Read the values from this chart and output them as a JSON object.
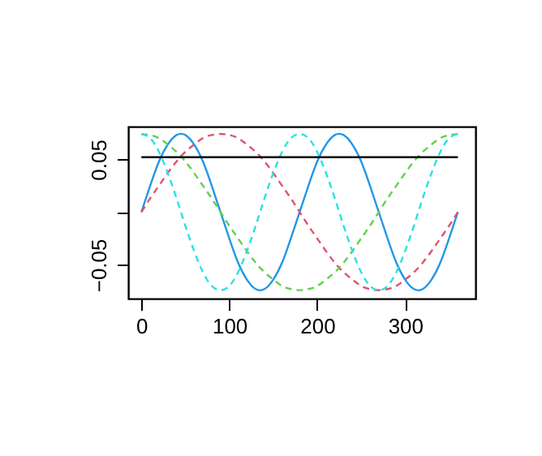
{
  "chart_data": {
    "type": "line",
    "x": [
      0,
      10,
      20,
      30,
      40,
      50,
      60,
      70,
      80,
      90,
      100,
      110,
      120,
      130,
      140,
      150,
      160,
      170,
      180,
      190,
      200,
      210,
      220,
      230,
      240,
      250,
      260,
      270,
      280,
      290,
      300,
      310,
      320,
      330,
      340,
      350,
      360
    ],
    "series": [
      {
        "color": "#2297e6",
        "line_style": "solid",
        "values": [
          0,
          0.025,
          0.048,
          0.064,
          0.073,
          0.073,
          0.064,
          0.048,
          0.025,
          0,
          -0.025,
          -0.048,
          -0.064,
          -0.073,
          -0.073,
          -0.064,
          -0.048,
          -0.025,
          0,
          0.025,
          0.048,
          0.064,
          0.073,
          0.073,
          0.064,
          0.048,
          0.025,
          0,
          -0.025,
          -0.048,
          -0.064,
          -0.073,
          -0.073,
          -0.064,
          -0.048,
          -0.025,
          0
        ]
      },
      {
        "color": "#df536b",
        "line_style": "dashed",
        "values": [
          0,
          0.013,
          0.025,
          0.037,
          0.048,
          0.057,
          0.064,
          0.07,
          0.073,
          0.074,
          0.073,
          0.07,
          0.064,
          0.057,
          0.048,
          0.037,
          0.025,
          0.013,
          0,
          -0.013,
          -0.025,
          -0.037,
          -0.048,
          -0.057,
          -0.064,
          -0.07,
          -0.073,
          -0.074,
          -0.073,
          -0.07,
          -0.064,
          -0.057,
          -0.048,
          -0.037,
          -0.025,
          -0.013,
          0
        ]
      },
      {
        "color": "#61d04f",
        "line_style": "dashed",
        "values": [
          0.074,
          0.073,
          0.07,
          0.064,
          0.057,
          0.048,
          0.037,
          0.025,
          0.013,
          0,
          -0.013,
          -0.025,
          -0.037,
          -0.048,
          -0.057,
          -0.064,
          -0.07,
          -0.073,
          -0.074,
          -0.073,
          -0.07,
          -0.064,
          -0.057,
          -0.048,
          -0.037,
          -0.025,
          -0.013,
          0,
          0.013,
          0.025,
          0.037,
          0.048,
          0.057,
          0.064,
          0.07,
          0.073,
          0.074
        ]
      },
      {
        "color": "#28e2e5",
        "line_style": "dashed",
        "values": [
          0.074,
          0.07,
          0.057,
          0.037,
          0.013,
          -0.013,
          -0.037,
          -0.057,
          -0.07,
          -0.074,
          -0.07,
          -0.057,
          -0.037,
          -0.013,
          0.013,
          0.037,
          0.057,
          0.07,
          0.074,
          0.07,
          0.057,
          0.037,
          0.013,
          -0.013,
          -0.037,
          -0.057,
          -0.07,
          -0.074,
          -0.07,
          -0.057,
          -0.037,
          -0.013,
          0.013,
          0.037,
          0.057,
          0.07,
          0.074
        ]
      },
      {
        "color": "#000000",
        "line_style": "solid",
        "x": [
          0,
          360
        ],
        "values": [
          0.052,
          0.052
        ]
      }
    ],
    "xlim": [
      -15,
      380
    ],
    "ylim": [
      -0.082,
      0.081
    ],
    "xticks": [
      0,
      100,
      200,
      300
    ],
    "yticks": [
      -0.05,
      {
        "value": 0,
        "label": null
      },
      0.05
    ],
    "grid": false,
    "marker": "none"
  }
}
